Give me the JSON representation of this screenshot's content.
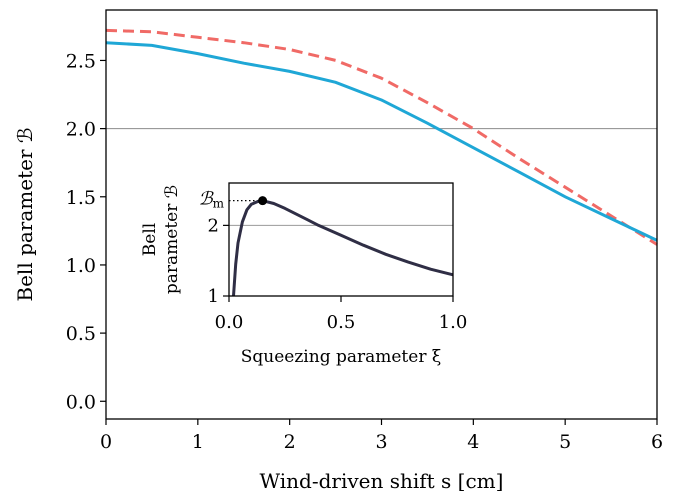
{
  "chart_data": [
    {
      "type": "line",
      "xlabel": "Wind-driven shift s [cm]",
      "ylabel": "Bell parameter ℬ",
      "xlim": [
        0,
        6
      ],
      "ylim": [
        -0.13,
        2.87
      ],
      "xticks": [
        "0",
        "1",
        "2",
        "3",
        "4",
        "5",
        "6"
      ],
      "yticks": [
        "0.0",
        "0.5",
        "1.0",
        "1.5",
        "2.0",
        "2.5"
      ],
      "reference_line": 2.0,
      "series": [
        {
          "style": "dashed",
          "color": "#f06a66",
          "x": [
            0,
            0.5,
            1,
            1.5,
            2,
            2.5,
            3,
            3.5,
            4,
            4.5,
            5,
            5.5,
            6
          ],
          "values": [
            2.72,
            2.71,
            2.67,
            2.63,
            2.58,
            2.5,
            2.37,
            2.19,
            2.0,
            1.78,
            1.57,
            1.36,
            1.15
          ]
        },
        {
          "style": "solid",
          "color": "#1fa7d6",
          "x": [
            0,
            0.5,
            1,
            1.5,
            2,
            2.5,
            3,
            3.5,
            4,
            4.5,
            5,
            5.5,
            6
          ],
          "values": [
            2.63,
            2.61,
            2.55,
            2.48,
            2.42,
            2.34,
            2.21,
            2.04,
            1.86,
            1.68,
            1.5,
            1.34,
            1.18
          ]
        }
      ]
    },
    {
      "type": "line",
      "inset": true,
      "xlabel": "Squeezing parameter ξ",
      "ylabel_lines": [
        "Bell",
        "parameter ℬ"
      ],
      "xlim": [
        0,
        1.0
      ],
      "ylim": [
        1.0,
        2.6
      ],
      "xticks": [
        "0.0",
        "0.5",
        "1.0"
      ],
      "yticks": [
        "1",
        "2"
      ],
      "marker_label": "ℬ",
      "marker_label_sub": "m",
      "reference_line": 2.0,
      "maximum": {
        "x": 0.15,
        "y": 2.35
      },
      "series": [
        {
          "color": "#2f2e45",
          "x": [
            0.02,
            0.03,
            0.04,
            0.06,
            0.08,
            0.1,
            0.13,
            0.15,
            0.2,
            0.25,
            0.3,
            0.35,
            0.4,
            0.5,
            0.6,
            0.7,
            0.8,
            0.9,
            1.0
          ],
          "values": [
            1.0,
            1.45,
            1.75,
            2.05,
            2.22,
            2.3,
            2.34,
            2.35,
            2.31,
            2.24,
            2.16,
            2.08,
            2.0,
            1.86,
            1.72,
            1.59,
            1.48,
            1.38,
            1.3
          ]
        }
      ]
    }
  ]
}
